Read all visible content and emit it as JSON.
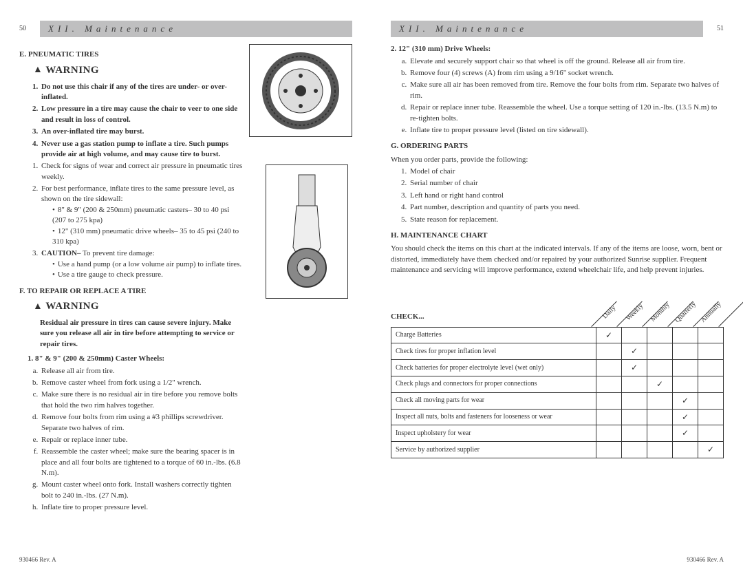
{
  "header": {
    "band_text": "XII. Maintenance",
    "page_left": "50",
    "page_right": "51"
  },
  "footer": {
    "docnum": "930466 Rev. A"
  },
  "warning_label": "WARNING",
  "left_page": {
    "section_e": {
      "title": "E. PNEUMATIC TIRES",
      "warn_items": [
        "Do not use this chair if any of the tires are under- or over-inflated.",
        "Low pressure in a tire may cause the chair to veer to one side and result in loss of control.",
        "An over-inflated tire may burst.",
        "Never use a gas station pump to inflate a tire. Such pumps provide air at high volume, and may cause tire to burst."
      ],
      "items": [
        "Check for signs of wear and correct air pressure in pneumatic tires weekly.",
        "For best performance, inflate tires to the same pressure level, as shown on the tire sidewall:"
      ],
      "bullets2": [
        "8\" & 9\" (200 & 250mm) pneumatic casters– 30 to 40 psi (207 to 275 kpa)",
        "12\" (310 mm) pneumatic drive wheels– 35 to 45 psi (240 to 310 kpa)"
      ],
      "item3_lead": "CAUTION–",
      "item3_tail": " To prevent tire damage:",
      "bullets3": [
        "Use a hand pump (or a low volume air pump) to inflate tires.",
        "Use a tire gauge to check pressure."
      ]
    },
    "section_f": {
      "title": "F. TO REPAIR OR REPLACE A TIRE",
      "warn_text": "Residual air pressure in tires can cause severe injury. Make sure you release all air in tire before attempting to service or repair tires.",
      "sub1_title": "1. 8\" & 9\" (200 & 250mm) Caster Wheels:",
      "sub1_items": [
        "Release all air from tire.",
        "Remove caster wheel from fork using a 1/2\" wrench.",
        "Make sure there is no residual air in tire before you remove bolts that hold the two rim halves together.",
        "Remove four bolts from rim using a #3 phillips screwdriver. Separate two halves of rim.",
        "Repair or replace inner tube.",
        "Reassemble the caster wheel; make sure the bearing spacer is in place and all four bolts are tightened to a torque of 60 in.-lbs. (6.8 N.m).",
        "Mount caster wheel onto fork. Install washers correctly tighten bolt to 240 in.-lbs. (27 N.m).",
        "Inflate tire to proper pressure level."
      ]
    }
  },
  "right_page": {
    "sub2_title": "2. 12\" (310 mm) Drive Wheels:",
    "sub2_items": [
      "Elevate and securely support chair so that wheel is off the ground. Release all air from tire.",
      "Remove four (4) screws (A) from rim using a 9/16\" socket wrench.",
      "Make sure all air has been removed from tire. Remove the four bolts from rim. Separate two halves of rim.",
      "Repair or replace inner tube. Reassemble the wheel. Use a torque setting of 120 in.-lbs. (13.5 N.m) to re-tighten bolts.",
      "Inflate tire to proper pressure level (listed on tire sidewall)."
    ],
    "section_g": {
      "title": "G. ORDERING PARTS",
      "intro": "When you order parts, provide the following:",
      "items": [
        "Model of chair",
        "Serial number of chair",
        "Left hand or right hand control",
        "Part number, description and quantity of parts you need.",
        "State reason for replacement."
      ]
    },
    "section_h": {
      "title": "H. MAINTENANCE CHART",
      "intro": "You should check the items on this chart at the indicated intervals. If any of the items are loose, worn, bent or distorted, immediately have them checked and/or repaired by your authorized Sunrise supplier. Frequent maintenance and servicing will improve performance, extend wheelchair life, and help prevent injuries.",
      "check_label": "CHECK...",
      "columns": [
        "Daily",
        "Weekly",
        "Monthly",
        "Quarterly",
        "Annually"
      ],
      "rows": [
        {
          "item": "Charge Batteries",
          "checks": [
            true,
            false,
            false,
            false,
            false
          ]
        },
        {
          "item": "Check tires for proper inflation level",
          "checks": [
            false,
            true,
            false,
            false,
            false
          ]
        },
        {
          "item": "Check batteries for proper electrolyte level (wet only)",
          "checks": [
            false,
            true,
            false,
            false,
            false
          ]
        },
        {
          "item": "Check plugs and connectors for proper connections",
          "checks": [
            false,
            false,
            true,
            false,
            false
          ]
        },
        {
          "item": "Check all moving parts for wear",
          "checks": [
            false,
            false,
            false,
            true,
            false
          ]
        },
        {
          "item": "Inspect all nuts, bolts and fasteners for looseness or wear",
          "checks": [
            false,
            false,
            false,
            true,
            false
          ]
        },
        {
          "item": "Inspect upholstery for wear",
          "checks": [
            false,
            false,
            false,
            true,
            false
          ]
        },
        {
          "item": "Service by authorized supplier",
          "checks": [
            false,
            false,
            false,
            false,
            true
          ]
        }
      ]
    }
  }
}
